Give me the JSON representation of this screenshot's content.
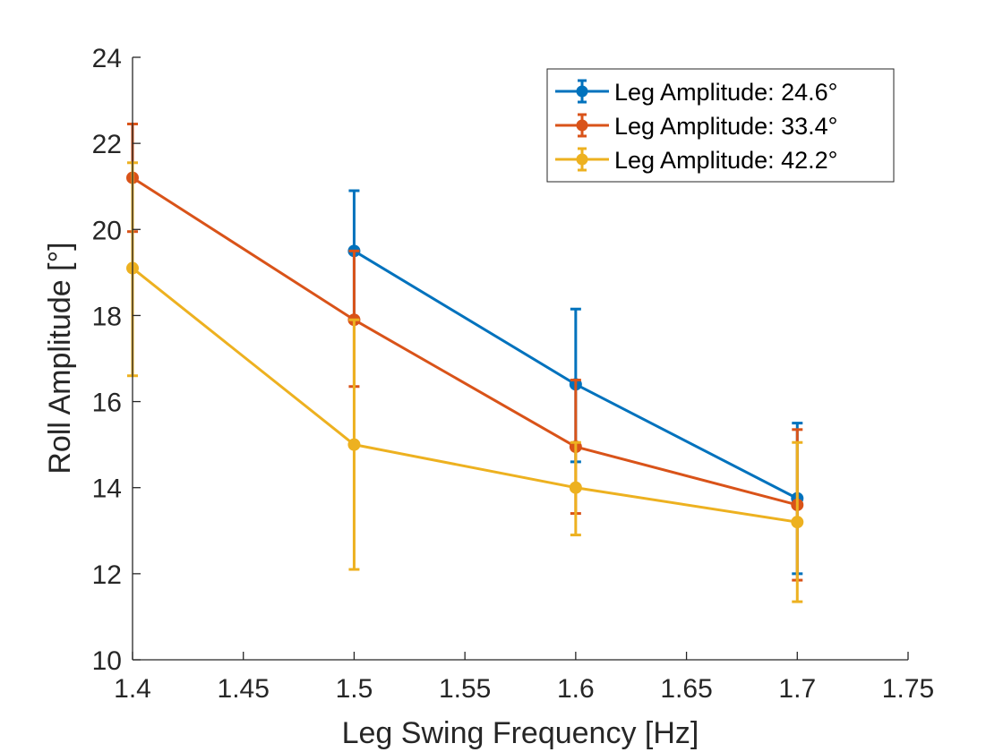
{
  "chart_data": {
    "type": "line",
    "title": "",
    "xlabel": "Leg Swing Frequency [Hz]",
    "ylabel": "Roll Amplitude [°]",
    "xlim": [
      1.4,
      1.75
    ],
    "ylim": [
      10,
      24
    ],
    "xticks": [
      1.4,
      1.45,
      1.5,
      1.55,
      1.6,
      1.65,
      1.7,
      1.75
    ],
    "xtick_labels": [
      "1.4",
      "1.45",
      "1.5",
      "1.55",
      "1.6",
      "1.65",
      "1.7",
      "1.75"
    ],
    "yticks": [
      10,
      12,
      14,
      16,
      18,
      20,
      22,
      24
    ],
    "ytick_labels": [
      "10",
      "12",
      "14",
      "16",
      "18",
      "20",
      "22",
      "24"
    ],
    "grid": false,
    "legend_position": "top-right",
    "series": [
      {
        "name": "Leg Amplitude: 24.6°",
        "color": "#0072BD",
        "x": [
          1.5,
          1.6,
          1.7
        ],
        "values": [
          19.5,
          16.4,
          13.75
        ],
        "err_low": [
          17.95,
          14.6,
          12.0
        ],
        "err_high": [
          20.9,
          18.15,
          15.5
        ]
      },
      {
        "name": "Leg Amplitude: 33.4°",
        "color": "#D95319",
        "x": [
          1.4,
          1.5,
          1.6,
          1.7
        ],
        "values": [
          21.2,
          17.9,
          14.95,
          13.6
        ],
        "err_low": [
          19.95,
          16.35,
          13.4,
          11.85
        ],
        "err_high": [
          22.45,
          19.5,
          16.5,
          15.35
        ]
      },
      {
        "name": "Leg Amplitude: 42.2°",
        "color": "#EDB120",
        "x": [
          1.4,
          1.5,
          1.6,
          1.7
        ],
        "values": [
          19.1,
          15.0,
          14.0,
          13.2
        ],
        "err_low": [
          16.6,
          12.1,
          12.9,
          11.35
        ],
        "err_high": [
          21.55,
          17.9,
          15.05,
          15.05
        ]
      }
    ]
  }
}
